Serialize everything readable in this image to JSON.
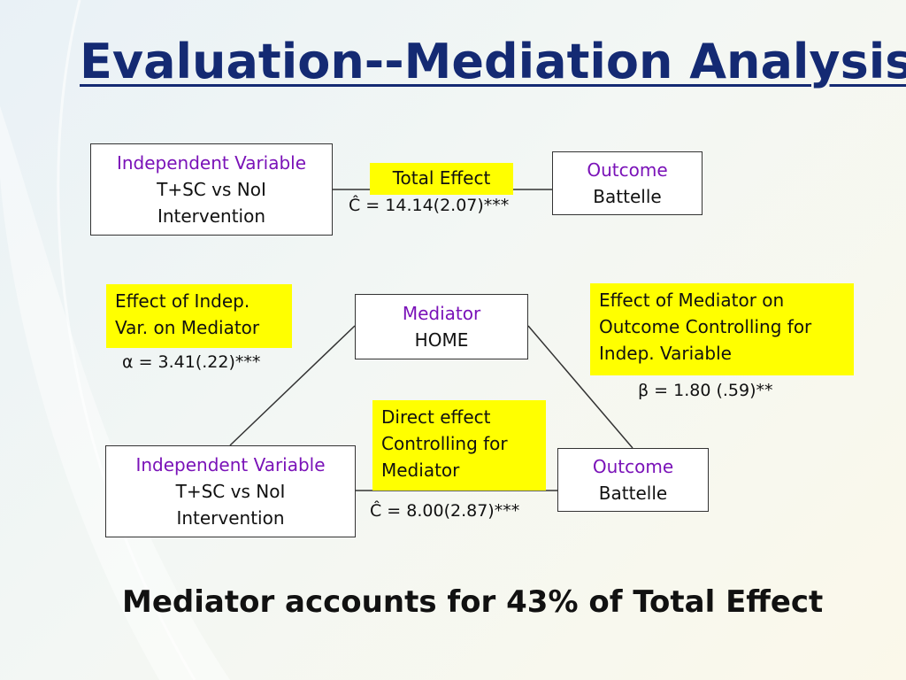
{
  "slide": {
    "title": "Evaluation--Mediation Analysis",
    "summary": "Mediator accounts for 43% of Total Effect"
  },
  "top_model": {
    "independent": {
      "head": "Independent Variable",
      "line1": "T+SC vs NoI",
      "line2": "Intervention"
    },
    "outcome": {
      "head": "Outcome",
      "line1": "Battelle"
    },
    "path_label": "Total Effect",
    "path_stat": "Ĉ = 14.14(2.07)***"
  },
  "mediation_model": {
    "mediator": {
      "head": "Mediator",
      "line1": "HOME"
    },
    "independent": {
      "head": "Independent Variable",
      "line1": "T+SC vs NoI",
      "line2": "Intervention"
    },
    "outcome": {
      "head": "Outcome",
      "line1": "Battelle"
    },
    "a_path_label": [
      "Effect of Indep.",
      "Var. on Mediator"
    ],
    "a_path_stat": "α = 3.41(.22)***",
    "b_path_label": [
      "Effect of  Mediator on",
      "Outcome Controlling for",
      "Indep. Variable"
    ],
    "b_path_stat": "β = 1.80 (.59)**",
    "direct_label": [
      "Direct effect",
      "Controlling for",
      "Mediator"
    ],
    "direct_stat": "Ĉ = 8.00(2.87)***"
  },
  "colors": {
    "title": "#142a73",
    "box_head": "#7a12b8",
    "highlight": "#ffff00"
  }
}
